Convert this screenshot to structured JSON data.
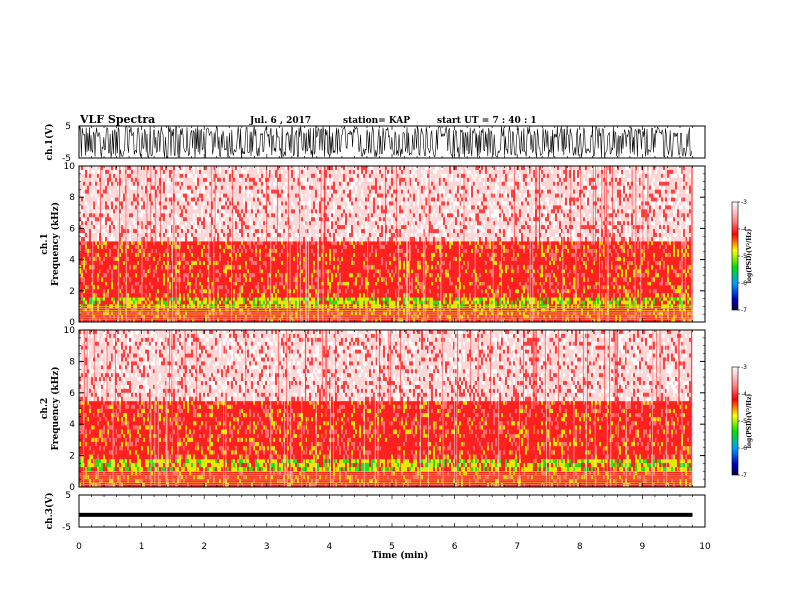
{
  "header": {
    "title": "VLF Spectra",
    "date": "Jul. 6 , 2017",
    "station": "station= KAP",
    "start": "start UT = 7 : 40 : 1"
  },
  "chart_data": [
    {
      "type": "line",
      "panel": "ch1-waveform",
      "ylabel": "ch.1(V)",
      "ylim": [
        -5,
        5
      ],
      "y_ticks": [
        "5",
        "-5"
      ],
      "xlim": [
        0,
        10
      ],
      "description_values": "dense noisy waveform, spikes between about -5 and +5 V over 0-9.8 min"
    },
    {
      "type": "heatmap",
      "panel": "ch1-spectrogram",
      "ylabel": "ch.1 Frequency (kHz)",
      "ylim": [
        0,
        10
      ],
      "y_ticks": [
        "0",
        "2",
        "4",
        "6",
        "8",
        "10"
      ],
      "xlim": [
        0,
        10
      ],
      "data_extent_min": 9.8,
      "bands": [
        {
          "from": 0.0,
          "to": 0.9,
          "level": -4.0
        },
        {
          "from": 0.9,
          "to": 1.6,
          "level": -4.6
        },
        {
          "from": 1.6,
          "to": 2.6,
          "level": -4.2
        },
        {
          "from": 2.6,
          "to": 3.4,
          "level": -4.3
        },
        {
          "from": 3.4,
          "to": 5.2,
          "level": -3.9
        },
        {
          "from": 5.2,
          "to": 10.0,
          "level": -3.6
        }
      ],
      "colorbar": {
        "label": "log(PSD)(V²/Hz)",
        "ticks": [
          "-3",
          "-4",
          "-5",
          "-6",
          "-7"
        ],
        "range": [
          -7,
          -3
        ]
      }
    },
    {
      "type": "heatmap",
      "panel": "ch2-spectrogram",
      "ylabel": "ch.2 Frequency (kHz)",
      "ylim": [
        0,
        10
      ],
      "y_ticks": [
        "0",
        "2",
        "4",
        "6",
        "8",
        "10"
      ],
      "xlim": [
        0,
        10
      ],
      "data_extent_min": 9.8,
      "bands": [
        {
          "from": 0.0,
          "to": 1.0,
          "level": -4.2
        },
        {
          "from": 1.0,
          "to": 1.8,
          "level": -4.7
        },
        {
          "from": 1.8,
          "to": 3.4,
          "level": -4.2
        },
        {
          "from": 3.4,
          "to": 5.5,
          "level": -3.8
        },
        {
          "from": 5.5,
          "to": 10.0,
          "level": -3.4
        }
      ],
      "colorbar": {
        "label": "log(PSD)(V²/Hz)",
        "ticks": [
          "-3",
          "-4",
          "-5",
          "-6",
          "-7"
        ],
        "range": [
          -7,
          -3
        ]
      }
    },
    {
      "type": "line",
      "panel": "ch3-waveform",
      "ylabel": "ch.3(V)",
      "ylim": [
        -5,
        5
      ],
      "y_ticks": [
        "5",
        "-5"
      ],
      "xlim": [
        0,
        10
      ],
      "values_const": -1.2
    }
  ],
  "x_axis": {
    "label": "Time (min)",
    "ticks": [
      "0",
      "1",
      "2",
      "3",
      "4",
      "5",
      "6",
      "7",
      "8",
      "9",
      "10"
    ]
  },
  "colors": {
    "red": "#ff2020",
    "yellow": "#e8e800",
    "green": "#20e020",
    "white": "#ffffff"
  }
}
